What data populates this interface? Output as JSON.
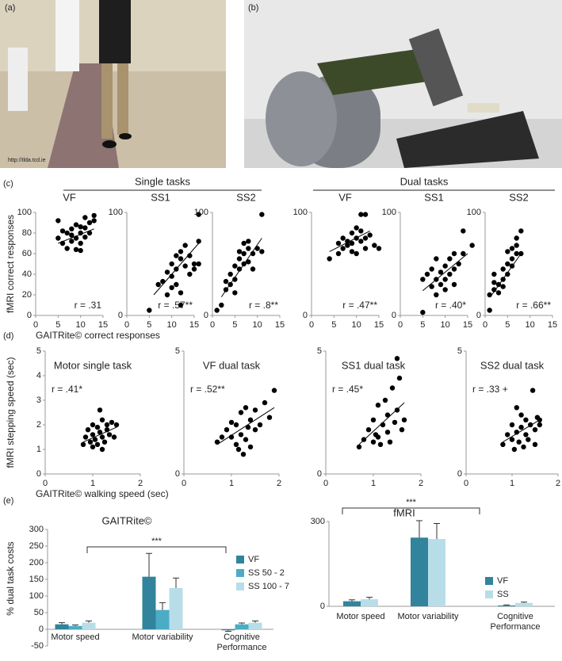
{
  "panel_labels": [
    "(a)",
    "(b)",
    "(c)",
    "(d)",
    "(e)"
  ],
  "photo_credit": "http://tlda.tcd.ie",
  "group_headers": [
    "Single tasks",
    "Dual tasks"
  ],
  "chart_data": [
    {
      "type": "scatter",
      "title": "VF",
      "xlabel": "GAITRite© correct responses",
      "ylabel": "fMRI correct responses",
      "x": [
        5,
        5,
        6,
        6,
        7,
        7,
        8,
        8,
        8,
        9,
        9,
        9,
        10,
        10,
        10,
        11,
        11,
        11,
        12,
        12,
        13,
        13,
        10
      ],
      "y": [
        92,
        75,
        82,
        70,
        80,
        65,
        78,
        72,
        84,
        88,
        75,
        64,
        80,
        70,
        63,
        85,
        76,
        95,
        90,
        80,
        97,
        92,
        86
      ],
      "trend_x": [
        5,
        13
      ],
      "trend_y": [
        70,
        84
      ],
      "annotation": "r = .31",
      "xlim": [
        0,
        15
      ],
      "ylim": [
        0,
        100
      ],
      "xticks": [
        0,
        5,
        10,
        15
      ],
      "yticks": [
        0,
        20,
        40,
        60,
        80,
        100
      ]
    },
    {
      "type": "scatter",
      "title": "SS1",
      "x": [
        5,
        7,
        8,
        9,
        9,
        10,
        10,
        10,
        11,
        11,
        11,
        12,
        12,
        12,
        12,
        13,
        13,
        14,
        14,
        15,
        15,
        16,
        16,
        16
      ],
      "y": [
        5,
        30,
        33,
        42,
        20,
        50,
        38,
        27,
        58,
        45,
        30,
        62,
        55,
        22,
        10,
        68,
        48,
        40,
        58,
        50,
        45,
        98,
        72,
        50
      ],
      "trend_x": [
        6,
        16
      ],
      "trend_y": [
        20,
        70
      ],
      "annotation": "r = .57**",
      "xlim": [
        0,
        15
      ],
      "ylim": [
        0,
        100
      ],
      "xticks": [
        0,
        5,
        10,
        15
      ],
      "yticks": [
        0,
        100
      ]
    },
    {
      "type": "scatter",
      "title": "SS2",
      "x": [
        1,
        2,
        3,
        3,
        4,
        4,
        5,
        5,
        5,
        6,
        6,
        6,
        7,
        7,
        7,
        8,
        8,
        8,
        9,
        9,
        10,
        11,
        11
      ],
      "y": [
        5,
        10,
        25,
        33,
        40,
        30,
        48,
        35,
        22,
        55,
        45,
        62,
        60,
        50,
        70,
        65,
        52,
        72,
        60,
        45,
        65,
        98,
        62
      ],
      "trend_x": [
        2,
        11
      ],
      "trend_y": [
        18,
        75
      ],
      "annotation": "r = .8**",
      "xlim": [
        0,
        15
      ],
      "ylim": [
        0,
        100
      ],
      "xticks": [
        0,
        5,
        10,
        15
      ],
      "yticks": [
        0,
        100
      ]
    },
    {
      "type": "scatter",
      "title": "VF",
      "x": [
        4,
        6,
        6,
        7,
        7,
        8,
        8,
        9,
        9,
        9,
        10,
        10,
        10,
        11,
        11,
        11,
        12,
        12,
        12,
        13,
        14,
        15
      ],
      "y": [
        55,
        60,
        70,
        75,
        65,
        72,
        68,
        80,
        70,
        62,
        85,
        75,
        60,
        98,
        72,
        82,
        65,
        98,
        75,
        78,
        68,
        65
      ],
      "trend_x": [
        4,
        13
      ],
      "trend_y": [
        62,
        82
      ],
      "annotation": "r = .47**",
      "xlim": [
        0,
        15
      ],
      "ylim": [
        0,
        100
      ],
      "xticks": [
        0,
        5,
        10,
        15
      ],
      "yticks": [
        0,
        100
      ]
    },
    {
      "type": "scatter",
      "title": "SS1",
      "x": [
        5,
        5,
        6,
        7,
        7,
        8,
        8,
        8,
        9,
        9,
        10,
        10,
        10,
        11,
        11,
        12,
        12,
        12,
        13,
        14,
        14,
        16
      ],
      "y": [
        3,
        35,
        40,
        28,
        45,
        20,
        35,
        55,
        30,
        42,
        25,
        48,
        35,
        55,
        40,
        60,
        45,
        30,
        50,
        82,
        60,
        68
      ],
      "trend_x": [
        5,
        15
      ],
      "trend_y": [
        24,
        60
      ],
      "annotation": "r = .40*",
      "xlim": [
        0,
        15
      ],
      "ylim": [
        0,
        100
      ],
      "xticks": [
        0,
        5,
        10,
        15
      ],
      "yticks": [
        0,
        100
      ]
    },
    {
      "type": "scatter",
      "title": "SS2",
      "x": [
        1,
        1,
        2,
        2,
        2,
        3,
        3,
        4,
        4,
        4,
        5,
        5,
        5,
        6,
        6,
        6,
        7,
        7,
        7,
        8,
        8
      ],
      "y": [
        5,
        20,
        25,
        32,
        40,
        30,
        22,
        35,
        45,
        28,
        50,
        40,
        62,
        55,
        65,
        48,
        60,
        75,
        68,
        82,
        60
      ],
      "trend_x": [
        1.5,
        8
      ],
      "trend_y": [
        20,
        60
      ],
      "annotation": "r = .66**",
      "xlim": [
        0,
        15
      ],
      "ylim": [
        0,
        100
      ],
      "xticks": [
        0,
        5,
        10,
        15
      ],
      "yticks": [
        0,
        100
      ]
    },
    {
      "type": "scatter",
      "title": "Motor single task",
      "xlabel": "GAITRite© walking speed (sec)",
      "ylabel": "fMRI stepping speed (sec)",
      "x": [
        0.8,
        0.85,
        0.9,
        0.95,
        1,
        1,
        1.05,
        1.1,
        1.1,
        1.15,
        1.15,
        1.2,
        1.2,
        1.25,
        1.3,
        1.3,
        1.35,
        1.4,
        1.45,
        1.5,
        1,
        1.2
      ],
      "y": [
        1.2,
        1.5,
        1.8,
        1.3,
        1.1,
        1.6,
        1.4,
        1.9,
        1.2,
        2.6,
        1.7,
        2.2,
        1.5,
        1.3,
        1.8,
        2,
        1.6,
        2.1,
        1.5,
        2,
        2,
        1
      ],
      "trend_x": [
        0.8,
        1.5
      ],
      "trend_y": [
        1.3,
        1.9
      ],
      "annotation": "r = .41*",
      "xlim": [
        0,
        2
      ],
      "ylim": [
        0,
        5
      ],
      "xticks": [
        0,
        1,
        2
      ],
      "yticks": [
        0,
        1,
        2,
        3,
        4,
        5
      ]
    },
    {
      "type": "scatter",
      "title": "VF dual task",
      "x": [
        0.7,
        0.8,
        0.9,
        1,
        1,
        1.1,
        1.1,
        1.15,
        1.2,
        1.2,
        1.25,
        1.3,
        1.35,
        1.4,
        1.4,
        1.5,
        1.5,
        1.6,
        1.7,
        1.8,
        1.9,
        1.3
      ],
      "y": [
        1.3,
        1.5,
        1.8,
        1.5,
        2.1,
        1.2,
        2,
        1,
        1.6,
        2.5,
        0.8,
        1.4,
        1.9,
        2.2,
        1.1,
        1.8,
        2.6,
        2,
        2.9,
        2.3,
        3.4,
        2.7
      ],
      "trend_x": [
        0.7,
        1.9
      ],
      "trend_y": [
        1.2,
        2.7
      ],
      "annotation": "r = .52**",
      "xlim": [
        0,
        2
      ],
      "ylim": [
        0,
        5
      ],
      "xticks": [
        0,
        1,
        2
      ],
      "yticks": [
        0,
        5
      ]
    },
    {
      "type": "scatter",
      "title": "SS1 dual task",
      "x": [
        0.7,
        0.8,
        0.9,
        1,
        1,
        1.05,
        1.1,
        1.1,
        1.15,
        1.2,
        1.25,
        1.3,
        1.3,
        1.35,
        1.4,
        1.45,
        1.5,
        1.5,
        1.55,
        1.6,
        1.65
      ],
      "y": [
        1.1,
        1.4,
        1.8,
        1.3,
        2.2,
        1.6,
        2.8,
        1.5,
        1.2,
        2,
        3,
        1.7,
        2.4,
        1.3,
        3.5,
        2.1,
        4.7,
        2.6,
        3.9,
        1.8,
        2.2
      ],
      "trend_x": [
        0.7,
        1.65
      ],
      "trend_y": [
        1.2,
        2.9
      ],
      "annotation": "r = .45*",
      "xlim": [
        0,
        2
      ],
      "ylim": [
        0,
        5
      ],
      "xticks": [
        0,
        1,
        2
      ],
      "yticks": [
        0,
        5
      ]
    },
    {
      "type": "scatter",
      "title": "SS2 dual task",
      "x": [
        0.8,
        0.9,
        1,
        1,
        1.05,
        1.1,
        1.1,
        1.15,
        1.2,
        1.2,
        1.25,
        1.3,
        1.3,
        1.35,
        1.4,
        1.45,
        1.5,
        1.5,
        1.55,
        1.6,
        1.6
      ],
      "y": [
        1.2,
        1.6,
        1.4,
        2,
        1,
        1.7,
        2.7,
        1.3,
        1.9,
        2.4,
        1.1,
        1.6,
        2.2,
        1.4,
        2,
        3.4,
        1.8,
        1.2,
        2.3,
        2,
        2.2
      ],
      "trend_x": [
        0.8,
        1.6
      ],
      "trend_y": [
        1.3,
        2.2
      ],
      "annotation": "r = .33 +",
      "xlim": [
        0,
        2
      ],
      "ylim": [
        0,
        5
      ],
      "xticks": [
        0,
        1,
        2
      ],
      "yticks": [
        0,
        5
      ]
    },
    {
      "type": "bar",
      "title": "GAITRite©",
      "ylabel": "% dual task costs",
      "categories": [
        "Motor speed",
        "Motor variability",
        "Cognitive Performance"
      ],
      "series": [
        {
          "name": "VF",
          "color": "#31849b",
          "values": [
            15,
            158,
            -3
          ],
          "errors": [
            5,
            70,
            3
          ]
        },
        {
          "name": "SS 50 - 2",
          "color": "#4bacc6",
          "values": [
            10,
            58,
            15
          ],
          "errors": [
            3,
            22,
            4
          ]
        },
        {
          "name": "SS 100 - 7",
          "color": "#b7dee8",
          "values": [
            20,
            124,
            20
          ],
          "errors": [
            5,
            30,
            5
          ]
        }
      ],
      "ylim": [
        -50,
        300
      ],
      "yticks": [
        -50,
        0,
        50,
        100,
        150,
        200,
        250,
        300
      ],
      "annotation": "***"
    },
    {
      "type": "bar",
      "title": "fMRI",
      "categories": [
        "Motor speed",
        "Motor variability",
        "Cognitive Performance"
      ],
      "series": [
        {
          "name": "VF",
          "color": "#31849b",
          "values": [
            18,
            243,
            3
          ],
          "errors": [
            5,
            60,
            2
          ]
        },
        {
          "name": "SS",
          "color": "#b7dee8",
          "values": [
            25,
            238,
            12
          ],
          "errors": [
            7,
            55,
            3
          ]
        }
      ],
      "ylim": [
        0,
        300
      ],
      "yticks": [
        0,
        300
      ],
      "annotation": "***"
    }
  ]
}
